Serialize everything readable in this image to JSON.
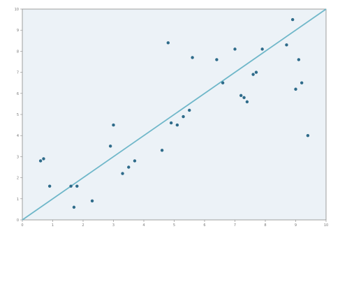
{
  "header": {
    "title": ""
  },
  "note": "",
  "chart_data": {
    "type": "scatter",
    "title": "",
    "xlabel": "",
    "ylabel": "",
    "xlim": [
      0,
      10
    ],
    "ylim": [
      0,
      10
    ],
    "x_ticks": [
      0,
      1,
      2,
      3,
      4,
      5,
      6,
      7,
      8,
      9,
      10
    ],
    "y_ticks": [
      0,
      1,
      2,
      3,
      4,
      5,
      6,
      7,
      8,
      9,
      10
    ],
    "grid": false,
    "reference_line": {
      "from": [
        0,
        0
      ],
      "to": [
        10,
        10
      ]
    },
    "colors": {
      "points": "#2e6b8a",
      "line": "#6fb7c9",
      "background": "#ecf2f7",
      "axis": "#888888"
    },
    "series": [
      {
        "points": [
          {
            "x": 0.6,
            "y": 2.8,
            "label": ""
          },
          {
            "x": 0.7,
            "y": 2.9,
            "label": ""
          },
          {
            "x": 0.9,
            "y": 1.6,
            "label": ""
          },
          {
            "x": 1.6,
            "y": 1.6,
            "label": ""
          },
          {
            "x": 1.8,
            "y": 1.6,
            "label": ""
          },
          {
            "x": 1.7,
            "y": 0.6,
            "label": ""
          },
          {
            "x": 2.3,
            "y": 0.9,
            "label": ""
          },
          {
            "x": 2.9,
            "y": 3.5,
            "label": ""
          },
          {
            "x": 3.0,
            "y": 4.5,
            "label": ""
          },
          {
            "x": 3.3,
            "y": 2.2,
            "label": ""
          },
          {
            "x": 3.5,
            "y": 2.5,
            "label": ""
          },
          {
            "x": 3.7,
            "y": 2.8,
            "label": ""
          },
          {
            "x": 4.6,
            "y": 3.3,
            "label": ""
          },
          {
            "x": 4.9,
            "y": 4.6,
            "label": ""
          },
          {
            "x": 5.1,
            "y": 4.5,
            "label": ""
          },
          {
            "x": 5.3,
            "y": 4.9,
            "label": ""
          },
          {
            "x": 5.5,
            "y": 5.2,
            "label": ""
          },
          {
            "x": 4.8,
            "y": 8.4,
            "label": ""
          },
          {
            "x": 5.6,
            "y": 7.7,
            "label": ""
          },
          {
            "x": 6.4,
            "y": 7.6,
            "label": ""
          },
          {
            "x": 6.6,
            "y": 6.5,
            "label": ""
          },
          {
            "x": 7.0,
            "y": 8.1,
            "label": ""
          },
          {
            "x": 7.2,
            "y": 5.9,
            "label": ""
          },
          {
            "x": 7.3,
            "y": 5.8,
            "label": ""
          },
          {
            "x": 7.4,
            "y": 5.6,
            "label": ""
          },
          {
            "x": 7.6,
            "y": 6.9,
            "label": ""
          },
          {
            "x": 7.7,
            "y": 7.0,
            "label": ""
          },
          {
            "x": 7.9,
            "y": 8.1,
            "label": ""
          },
          {
            "x": 8.7,
            "y": 8.3,
            "label": ""
          },
          {
            "x": 8.9,
            "y": 9.5,
            "label": ""
          },
          {
            "x": 9.1,
            "y": 7.6,
            "label": ""
          },
          {
            "x": 9.0,
            "y": 6.2,
            "label": ""
          },
          {
            "x": 9.2,
            "y": 6.5,
            "label": ""
          },
          {
            "x": 9.4,
            "y": 4.0,
            "label": ""
          }
        ]
      }
    ]
  }
}
